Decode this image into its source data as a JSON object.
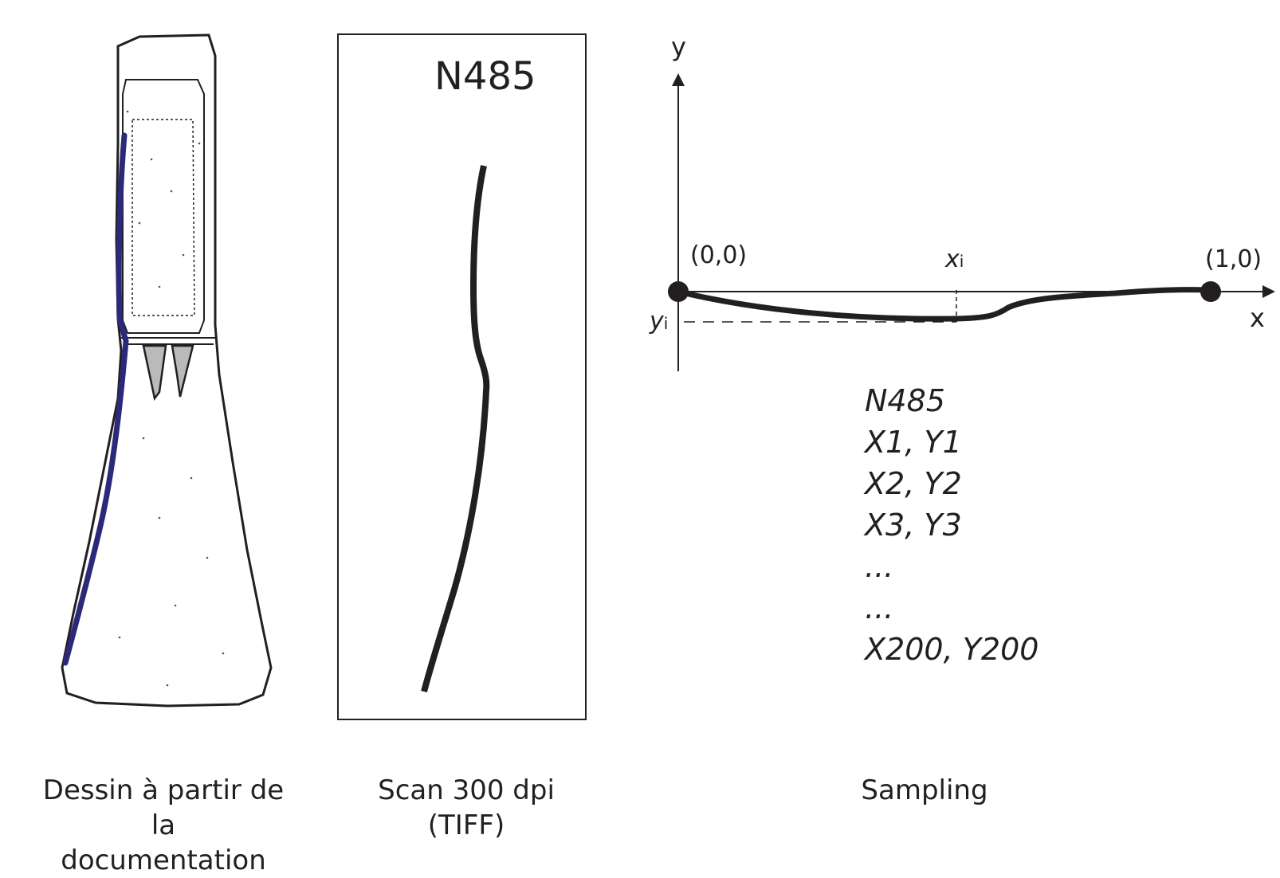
{
  "drawing_panel": {
    "caption_line1": "Dessin à partir de la",
    "caption_line2": "documentation",
    "outline_color": "#2b2a7a"
  },
  "scan_panel": {
    "title": "N485",
    "caption": "Scan 300 dpi (TIFF)"
  },
  "sampling_panel": {
    "y_axis_label": "y",
    "x_axis_label": "x",
    "origin_label": "(0,0)",
    "end_label": "(1,0)",
    "xi_main": "x",
    "xi_sub": "i",
    "yi_main": "y",
    "yi_sub": "i",
    "caption": "Sampling",
    "samples": [
      "N485",
      "X1, Y1",
      "X2, Y2",
      "X3, Y3",
      "...",
      "...",
      "X200, Y200"
    ]
  }
}
